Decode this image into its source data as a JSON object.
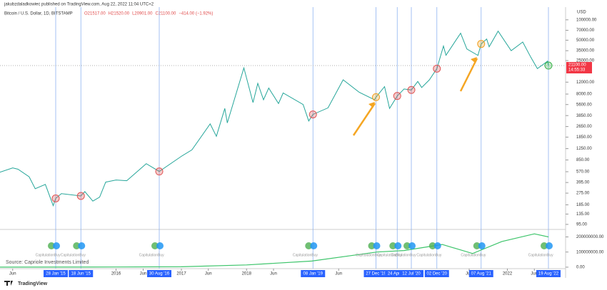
{
  "header": "jakubzdaladkowiec published on TradingView.com, Aug 22, 2022 11:04 UTC+2",
  "symbol": "Bitcoin / U.S. Dollar, 1D, BITSTAMP",
  "ohlc": [
    "O21517.00",
    "H21520.00",
    "L20901.00",
    "C21100.00",
    "−414.00 (−1.92%)"
  ],
  "brand": "TradingView",
  "chart_data": [
    {
      "type": "line",
      "log_scale": true,
      "color": "#26a69a",
      "unit": "USD",
      "x": [
        "2014-03-22",
        "2014-06-01",
        "2014-07-01",
        "2014-09-01",
        "2014-10-05",
        "2014-12-01",
        "2015-01-14",
        "2015-01-28",
        "2015-03-01",
        "2015-06-18",
        "2015-07-10",
        "2015-08-24",
        "2015-10-01",
        "2015-11-04",
        "2016-01-01",
        "2016-03-01",
        "2016-06-18",
        "2016-08-30",
        "2016-12-31",
        "2017-03-01",
        "2017-06-11",
        "2017-07-16",
        "2017-09-01",
        "2017-09-15",
        "2017-12-17",
        "2018-02-06",
        "2018-03-05",
        "2018-04-06",
        "2018-05-05",
        "2018-06-29",
        "2018-07-25",
        "2018-11-14",
        "2018-12-15",
        "2019-01-08",
        "2019-04-02",
        "2019-06-26",
        "2019-09-24",
        "2019-12-18",
        "2019-12-27",
        "2020-02-13",
        "2020-03-12",
        "2020-04-24",
        "2020-06-01",
        "2020-07-12",
        "2020-08-17",
        "2020-09-08",
        "2020-10-21",
        "2020-12-02",
        "2021-01-08",
        "2021-01-22",
        "2021-04-14",
        "2021-05-19",
        "2021-07-20",
        "2021-08-07",
        "2021-09-07",
        "2021-09-21",
        "2021-11-10",
        "2022-01-22",
        "2022-03-28",
        "2022-05-12",
        "2022-06-18",
        "2022-08-14",
        "2022-08-19"
      ],
      "values": [
        560,
        650,
        620,
        480,
        320,
        370,
        180,
        230,
        270,
        250,
        290,
        210,
        240,
        400,
        430,
        420,
        750,
        575,
        960,
        1200,
        2900,
        1900,
        4900,
        3000,
        19500,
        6000,
        11500,
        6600,
        9800,
        5800,
        8300,
        5600,
        3200,
        4000,
        5000,
        13000,
        8500,
        6600,
        7200,
        10300,
        4900,
        7500,
        9500,
        9200,
        12300,
        10000,
        13000,
        19000,
        41000,
        30000,
        63500,
        37000,
        29800,
        44000,
        52000,
        40000,
        68000,
        35000,
        47000,
        28000,
        19000,
        24500,
        21100
      ],
      "xlim": [
        "2014-03-22",
        "2022-11-15"
      ],
      "ylim": [
        84,
        154000
      ],
      "yticks": [
        {
          "value": 100000,
          "label": "100000.00"
        },
        {
          "value": 70000,
          "label": "70000.00"
        },
        {
          "value": 50000,
          "label": "50000.00"
        },
        {
          "value": 35000,
          "label": "35000.00"
        },
        {
          "value": 25000,
          "label": "25000.00"
        },
        {
          "value": 12000,
          "label": "12000.00"
        },
        {
          "value": 8000,
          "label": "8000.00"
        },
        {
          "value": 5600,
          "label": "5600.00"
        },
        {
          "value": 3850,
          "label": "3850.00"
        },
        {
          "value": 2650,
          "label": "2650.00"
        },
        {
          "value": 1850,
          "label": "1850.00"
        },
        {
          "value": 1250,
          "label": "1250.00"
        },
        {
          "value": 850,
          "label": "850.00"
        },
        {
          "value": 570,
          "label": "570.00"
        },
        {
          "value": 395,
          "label": "395.00"
        },
        {
          "value": 275,
          "label": "275.00"
        },
        {
          "value": 185,
          "label": "185.00"
        },
        {
          "value": 135,
          "label": "135.00"
        },
        {
          "value": 95,
          "label": "95.00"
        }
      ],
      "xticks": [
        {
          "value": "2014-06-01",
          "label": "Jun"
        },
        {
          "value": "2016-01-01",
          "label": "2016"
        },
        {
          "value": "2016-06-01",
          "label": "Jun"
        },
        {
          "value": "2017-01-01",
          "label": "2017"
        },
        {
          "value": "2017-06-01",
          "label": "Jun"
        },
        {
          "value": "2018-01-01",
          "label": "2018"
        },
        {
          "value": "2018-06-01",
          "label": "Jun"
        },
        {
          "value": "2019-06-01",
          "label": "Jun"
        },
        {
          "value": "2021-06-01",
          "label": "Jun"
        },
        {
          "value": "2022-01-01",
          "label": "2022"
        },
        {
          "value": "2022-06-01",
          "label": "Jun"
        }
      ],
      "last_price": {
        "value": 21100,
        "label": "21100.00"
      },
      "countdown": "14:55:33",
      "events": [
        {
          "x": "2015-01-28",
          "label": "28 Jan '15",
          "marker": "#e05555"
        },
        {
          "x": "2015-06-18",
          "label": "18 Jun '15",
          "marker": "#e05555"
        },
        {
          "x": "2016-08-30",
          "label": "30 Aug '16",
          "marker": "#e05555"
        },
        {
          "x": "2019-01-08",
          "label": "08 Jan '19",
          "marker": "#e05555"
        },
        {
          "x": "2019-12-27",
          "label": "27 Dec '19",
          "marker": "#f0a020"
        },
        {
          "x": "2020-04-24",
          "label": "24 Apr '20",
          "marker": "#e05555"
        },
        {
          "x": "2020-07-12",
          "label": "12 Jul '20",
          "marker": "#e05555"
        },
        {
          "x": "2020-12-02",
          "label": "02 Dec '20",
          "marker": "#e05555"
        },
        {
          "x": "2021-08-07",
          "label": "07 Aug '21",
          "marker": "#f0a020"
        },
        {
          "x": "2022-08-19",
          "label": "19 Aug '22",
          "marker": "#3cb44b"
        }
      ]
    },
    {
      "type": "line",
      "color": "#3cc46a",
      "x": [
        "2014-03-22",
        "2016-01-01",
        "2017-01-01",
        "2018-01-01",
        "2019-01-01",
        "2020-01-01",
        "2020-06-01",
        "2021-01-01",
        "2021-06-20",
        "2021-12-01",
        "2022-06-01",
        "2022-08-19"
      ],
      "values": [
        0,
        1000000,
        2500000,
        15000000,
        40000000,
        100000000,
        110000000,
        150000000,
        90000000,
        170000000,
        220000000,
        200000000
      ],
      "xlim": [
        "2014-03-22",
        "2022-11-15"
      ],
      "ylim": [
        -5000000,
        240000000
      ],
      "yticks": [
        {
          "value": 200000000,
          "label": "200000000.00"
        },
        {
          "value": 100000000,
          "label": "100000000.00"
        },
        {
          "value": 0,
          "label": "0.00"
        }
      ],
      "signal_labels": [
        "Capitulation",
        "Buy"
      ],
      "source": "Source: Capriole Investments Limited"
    }
  ]
}
